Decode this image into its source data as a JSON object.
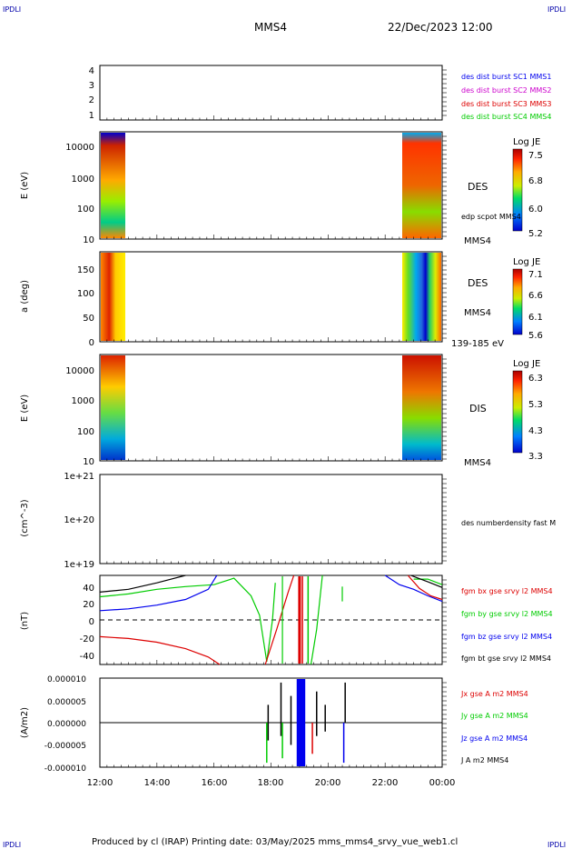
{
  "corner_labels": {
    "top_left": "IPDLI",
    "top_right": "IPDLI",
    "bottom_left": "IPDLI",
    "bottom_right": "IPDLI"
  },
  "header": {
    "spacecraft": "MMS4",
    "date": "22/Dec/2023 12:00"
  },
  "footer": {
    "text": "Produced by cl (IRAP)   Printing date: 03/May/2025   mms_mms4_srvy_vue_web1.cl"
  },
  "colors": {
    "red": "#dd0000",
    "green": "#00cc00",
    "blue": "#0000ee",
    "black": "#000000",
    "magenta": "#cc00cc"
  },
  "chart_data": [
    {
      "type": "line",
      "panel": "burst",
      "yticks": [
        "4",
        "3",
        "2",
        "1"
      ],
      "legend": [
        {
          "text": "des dist burst SC1 MMS1",
          "color": "#0000ee"
        },
        {
          "text": "des dist burst SC2 MMS2",
          "color": "#cc00cc"
        },
        {
          "text": "des dist burst SC3 MMS3",
          "color": "#dd0000"
        },
        {
          "text": "des dist burst SC4 MMS4",
          "color": "#00cc00"
        }
      ]
    },
    {
      "type": "heatmap",
      "panel": "des-energy",
      "ylabel": "E (eV)",
      "yscale": "log",
      "yticks": [
        "10000",
        "1000",
        "100",
        "10"
      ],
      "instrument_label": "DES",
      "sub_label": "edp scpot MMS4",
      "bottom_label": "MMS4",
      "colorbar": {
        "title": "Log JE",
        "ticks": [
          "7.5",
          "6.8",
          "6.0",
          "5.2"
        ]
      },
      "coverage_hours": [
        [
          12.0,
          12.9
        ],
        [
          22.6,
          24.0
        ]
      ]
    },
    {
      "type": "heatmap",
      "panel": "des-pitch",
      "ylabel": "a (deg)",
      "yticks": [
        "150",
        "100",
        "50",
        "0"
      ],
      "instrument_label": "DES",
      "sub_label": "MMS4",
      "bottom_label": "139-185 eV",
      "colorbar": {
        "title": "Log JE",
        "ticks": [
          "7.1",
          "6.6",
          "6.1",
          "5.6"
        ]
      },
      "coverage_hours": [
        [
          12.0,
          12.9
        ],
        [
          22.6,
          24.0
        ]
      ]
    },
    {
      "type": "heatmap",
      "panel": "dis-energy",
      "ylabel": "E (eV)",
      "yscale": "log",
      "yticks": [
        "10000",
        "1000",
        "100",
        "10"
      ],
      "instrument_label": "DIS",
      "bottom_label": "MMS4",
      "colorbar": {
        "title": "Log JE",
        "ticks": [
          "6.3",
          "5.3",
          "4.3",
          "3.3"
        ]
      },
      "coverage_hours": [
        [
          12.0,
          12.9
        ],
        [
          22.6,
          24.0
        ]
      ]
    },
    {
      "type": "line",
      "panel": "density",
      "ylabel": "(cm^-3)",
      "yscale": "log",
      "yticks": [
        "1e+21",
        "1e+20",
        "1e+19"
      ],
      "legend": [
        {
          "text": "des numberdensity fast M",
          "color": "#000000"
        }
      ]
    },
    {
      "type": "line",
      "panel": "fgm",
      "ylabel": "(nT)",
      "ylim": [
        -48,
        48
      ],
      "yticks": [
        "40",
        "20",
        "0",
        "-20",
        "-40"
      ],
      "legend": [
        {
          "text": "fgm bx gse srvy l2 MMS4",
          "color": "#dd0000"
        },
        {
          "text": "fgm by gse srvy l2 MMS4",
          "color": "#00cc00"
        },
        {
          "text": "fgm bz gse srvy l2 MMS4",
          "color": "#0000ee"
        },
        {
          "text": "fgm bt gse srvy l2 MMS4",
          "color": "#000000"
        }
      ],
      "series": [
        {
          "color": "#000000",
          "points": [
            [
              12.0,
              30
            ],
            [
              13.0,
              33
            ],
            [
              14.0,
              40
            ],
            [
              15.0,
              49
            ]
          ]
        },
        {
          "color": "#00cc00",
          "points": [
            [
              12.0,
              25
            ],
            [
              13.0,
              28
            ],
            [
              14.0,
              33
            ],
            [
              15.0,
              36
            ],
            [
              16.0,
              38
            ],
            [
              16.7,
              45
            ],
            [
              17.3,
              26
            ],
            [
              17.6,
              5
            ],
            [
              17.85,
              -45
            ],
            [
              18.05,
              0
            ],
            [
              18.15,
              40
            ]
          ]
        },
        {
          "color": "#0000ee",
          "points": [
            [
              12.0,
              10
            ],
            [
              13.0,
              12
            ],
            [
              14.0,
              16
            ],
            [
              15.0,
              22
            ],
            [
              15.8,
              33
            ],
            [
              16.1,
              49
            ]
          ]
        },
        {
          "color": "#dd0000",
          "points": [
            [
              12.0,
              -18
            ],
            [
              13.0,
              -20
            ],
            [
              14.0,
              -24
            ],
            [
              15.0,
              -31
            ],
            [
              15.8,
              -40
            ],
            [
              16.2,
              -48
            ]
          ]
        },
        {
          "color": "#dd0000",
          "points": [
            [
              17.8,
              -48
            ],
            [
              18.2,
              -10
            ],
            [
              18.6,
              30
            ],
            [
              18.8,
              48
            ]
          ]
        },
        {
          "color": "#00cc00",
          "points": [
            [
              19.4,
              -48
            ],
            [
              19.6,
              -10
            ],
            [
              19.8,
              48
            ]
          ]
        },
        {
          "color": "#00cc00",
          "points": [
            [
              20.5,
              20
            ],
            [
              20.5,
              36
            ]
          ]
        },
        {
          "color": "#0000ee",
          "points": [
            [
              22.0,
              48
            ],
            [
              22.5,
              38
            ],
            [
              23.0,
              33
            ],
            [
              23.5,
              26
            ],
            [
              24.0,
              20
            ]
          ]
        },
        {
          "color": "#dd0000",
          "points": [
            [
              22.8,
              48
            ],
            [
              23.2,
              34
            ],
            [
              23.6,
              26
            ],
            [
              24.0,
              22
            ]
          ]
        },
        {
          "color": "#00cc00",
          "points": [
            [
              23.0,
              44
            ],
            [
              23.5,
              44
            ],
            [
              24.0,
              38
            ]
          ]
        },
        {
          "color": "#000000",
          "points": [
            [
              22.9,
              48
            ],
            [
              23.5,
              41
            ],
            [
              24.0,
              35
            ]
          ]
        }
      ]
    },
    {
      "type": "line",
      "panel": "current",
      "ylabel": "(A/m2)",
      "ylim": [
        -1e-05,
        1e-05
      ],
      "yticks": [
        "0.000010",
        "0.000005",
        "0.000000",
        "-0.000005",
        "-0.000010"
      ],
      "xticks": [
        "12:00",
        "14:00",
        "16:00",
        "18:00",
        "20:00",
        "22:00",
        "00:00"
      ],
      "x_hours": [
        12,
        14,
        16,
        18,
        20,
        22,
        24
      ],
      "legend": [
        {
          "text": "Jx gse A m2 MMS4",
          "color": "#dd0000"
        },
        {
          "text": "Jy gse A m2 MMS4",
          "color": "#00cc00"
        },
        {
          "text": "Jz gse A m2 MMS4",
          "color": "#0000ee"
        },
        {
          "text": "J A m2 MMS4",
          "color": "#000000"
        }
      ]
    }
  ]
}
